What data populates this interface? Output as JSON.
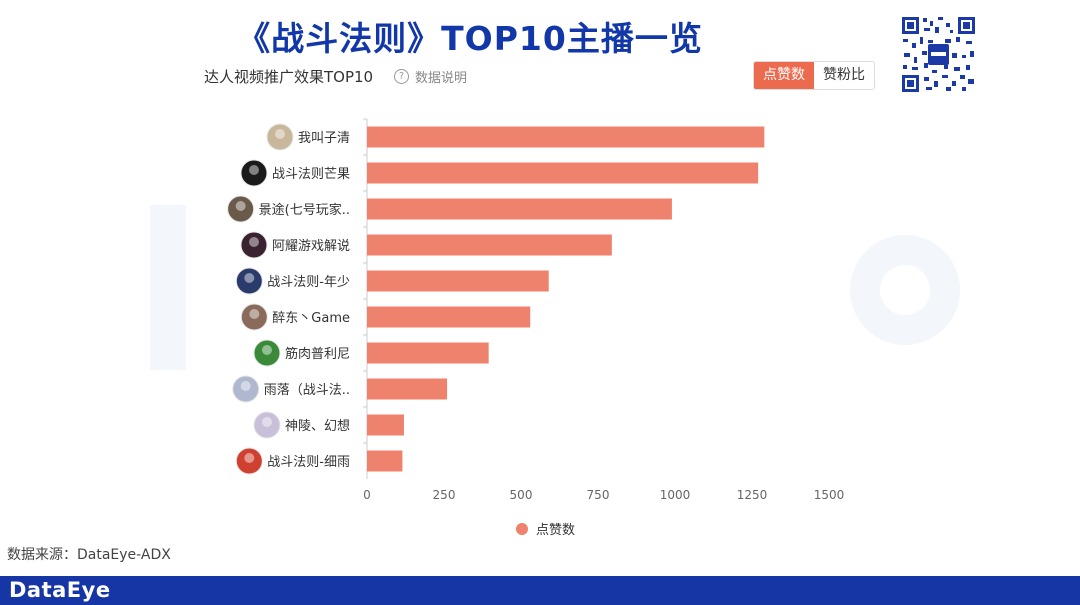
{
  "title": "《战斗法则》TOP10主播一览",
  "subtitle": "达人视频推广效果TOP10",
  "help_label": "数据说明",
  "toggle": {
    "active": "点赞数",
    "inactive": "赞粉比"
  },
  "source": "数据来源：DataEye-ADX",
  "footer_logo": "DataEye",
  "colors": {
    "bar": "#ef826c",
    "title": "#1237a8",
    "footer": "#1636a6",
    "accent": "#ec6b4f"
  },
  "chart_data": {
    "type": "bar",
    "orientation": "horizontal",
    "categories": [
      "我叫子清",
      "战斗法则芒果",
      "景途(七号玩家..",
      "阿耀游戏解说",
      "战斗法则-年少",
      "醉东丶Game",
      "筋肉普利尼",
      "雨落（战斗法..",
      "神陵、幻想",
      "战斗法则-细雨"
    ],
    "series": [
      {
        "name": "点赞数",
        "values": [
          1290,
          1270,
          990,
          795,
          590,
          530,
          395,
          260,
          120,
          115
        ]
      }
    ],
    "xlim": [
      0,
      1500
    ],
    "xticks": [
      0,
      250,
      500,
      750,
      1000,
      1250,
      1500
    ],
    "grid": false,
    "legend": "bottom"
  }
}
